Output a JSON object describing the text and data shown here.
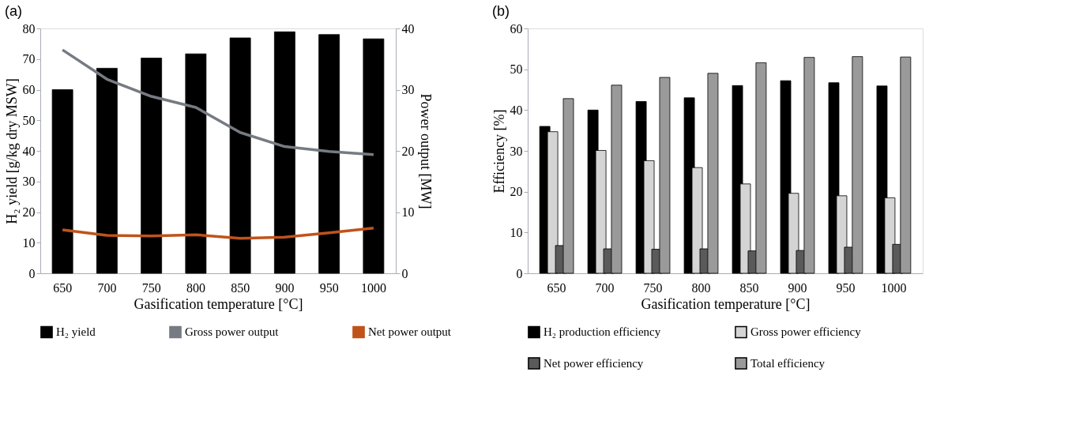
{
  "chart_data": [
    {
      "type": "bar",
      "title": "(a)",
      "xlabel": "Gasification temperature [°C]",
      "ylabel": "H₂ yield [g/kg dry MSW]",
      "y2label": "Power output [MW]",
      "categories": [
        "650",
        "700",
        "750",
        "800",
        "850",
        "900",
        "950",
        "1000"
      ],
      "series": [
        {
          "name": "H₂ yield",
          "color": "#000000",
          "values": [
            60,
            67,
            70.3,
            71.7,
            76.9,
            78.9,
            78,
            76.6
          ]
        },
        {
          "name": "Gross power output",
          "type": "line",
          "axis": "y2",
          "color": "#767b83",
          "values": [
            36.5,
            31.7,
            28.9,
            27.1,
            23.0,
            20.7,
            19.9,
            19.4
          ]
        },
        {
          "name": "Net power output",
          "type": "line",
          "axis": "y2",
          "color": "#c0531a",
          "values": [
            7.1,
            6.2,
            6.1,
            6.3,
            5.7,
            5.9,
            6.6,
            7.4
          ]
        }
      ],
      "ylim": [
        0,
        80
      ],
      "yticks": [
        0,
        10,
        20,
        30,
        40,
        50,
        60,
        70,
        80
      ],
      "y2lim": [
        0,
        40
      ],
      "y2ticks": [
        0,
        10,
        20,
        30,
        40
      ],
      "grid": false,
      "legend": "bottom",
      "marker": "none",
      "line_style": "solid"
    },
    {
      "type": "bar",
      "title": "(b)",
      "xlabel": "Gasification temperature [°C]",
      "ylabel": "Efficiency [%]",
      "categories": [
        "650",
        "700",
        "750",
        "800",
        "850",
        "900",
        "950",
        "1000"
      ],
      "series": [
        {
          "name": "H₂ production efficiency",
          "color": "#000000",
          "values": [
            36,
            40,
            42.1,
            43,
            46,
            47.2,
            46.7,
            45.9
          ]
        },
        {
          "name": "Gross power efficiency",
          "color": "#d4d4d4",
          "values": [
            34.7,
            30.1,
            27.6,
            25.9,
            21.9,
            19.6,
            19,
            18.5
          ]
        },
        {
          "name": "Net power efficiency",
          "color": "#5a5a5a",
          "values": [
            6.8,
            6,
            5.9,
            6,
            5.5,
            5.6,
            6.4,
            7.1
          ]
        },
        {
          "name": "Total efficiency",
          "color": "#9a9a9a",
          "values": [
            42.8,
            46.1,
            48,
            49,
            51.6,
            52.9,
            53.1,
            53
          ]
        }
      ],
      "ylim": [
        0,
        60
      ],
      "yticks": [
        0,
        10,
        20,
        30,
        40,
        50,
        60
      ],
      "grid": false,
      "legend": "bottom"
    }
  ]
}
